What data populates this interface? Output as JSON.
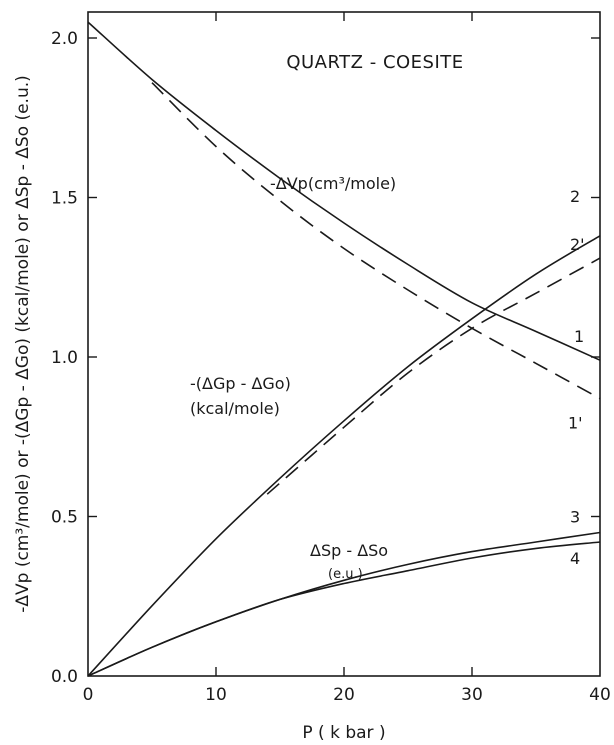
{
  "chart_data": {
    "type": "line",
    "title": "QUARTZ - COESITE",
    "xlabel": "P ( k bar )",
    "ylabel": "-ΔVp (cm³/mole) or -(ΔGp - ΔGo) (kcal/mole) or ΔSp - ΔSo (e.u.)",
    "xlim": [
      0,
      40
    ],
    "ylim": [
      0,
      2.1
    ],
    "xticks": [
      "0",
      "10",
      "20",
      "30",
      "40"
    ],
    "yticks": [
      "0.0",
      "0.5",
      "1.0",
      "1.5",
      "2.0"
    ],
    "grid": false,
    "series": [
      {
        "name": "1",
        "style": "solid",
        "x": [
          0,
          5,
          10,
          15,
          20,
          25,
          30,
          35,
          40
        ],
        "y": [
          2.05,
          1.87,
          1.71,
          1.56,
          1.42,
          1.29,
          1.17,
          1.08,
          0.99
        ]
      },
      {
        "name": "1'",
        "style": "dashed",
        "x": [
          5,
          10,
          15,
          20,
          25,
          30,
          35,
          40
        ],
        "y": [
          1.86,
          1.66,
          1.49,
          1.34,
          1.21,
          1.09,
          0.98,
          0.87
        ]
      },
      {
        "name": "2",
        "style": "solid",
        "x": [
          0,
          5,
          10,
          15,
          20,
          25,
          30,
          35,
          40
        ],
        "y": [
          0.0,
          0.22,
          0.43,
          0.62,
          0.8,
          0.97,
          1.12,
          1.26,
          1.38
        ]
      },
      {
        "name": "2'",
        "style": "dashed",
        "x": [
          14,
          20,
          25,
          30,
          35,
          40
        ],
        "y": [
          0.57,
          0.78,
          0.95,
          1.09,
          1.2,
          1.31
        ]
      },
      {
        "name": "3",
        "style": "solid",
        "x": [
          0,
          5,
          10,
          15,
          20,
          25,
          30,
          35,
          40
        ],
        "y": [
          0.0,
          0.09,
          0.17,
          0.24,
          0.3,
          0.35,
          0.39,
          0.42,
          0.45
        ]
      },
      {
        "name": "4",
        "style": "solid",
        "x": [
          0,
          5,
          10,
          15,
          20,
          25,
          30,
          35,
          40
        ],
        "y": [
          0.0,
          0.09,
          0.17,
          0.24,
          0.29,
          0.33,
          0.37,
          0.4,
          0.42
        ]
      }
    ],
    "annotations": {
      "dv_label": "-ΔVp(cm³/mole)",
      "dg_label_line1": "-(ΔGp - ΔGo)",
      "dg_label_line2": "(kcal/mole)",
      "ds_label_line1": "ΔSp - ΔSo",
      "ds_label_line2": "(e.u.)"
    }
  },
  "colors": {
    "ink": "#1a1a1a",
    "background": "#ffffff"
  }
}
